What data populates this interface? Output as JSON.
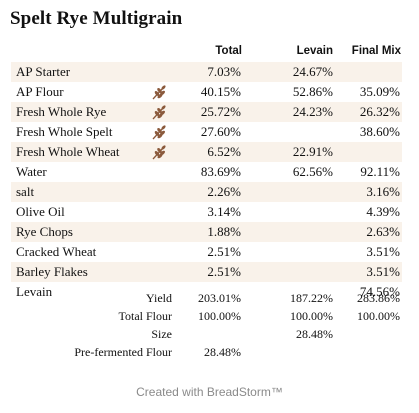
{
  "title": "Spelt Rye Multigrain",
  "columns": {
    "total": "Total",
    "levain": "Levain",
    "final": "Final Mix"
  },
  "rows": [
    {
      "name": "AP Starter",
      "total": "7.03%",
      "levain": "24.67%",
      "final": "",
      "icon": ""
    },
    {
      "name": "AP Flour",
      "total": "40.15%",
      "levain": "52.86%",
      "final": "35.09%",
      "icon": "wheat-icon"
    },
    {
      "name": "Fresh Whole Rye",
      "total": "25.72%",
      "levain": "24.23%",
      "final": "26.32%",
      "icon": "wheat-icon"
    },
    {
      "name": "Fresh Whole Spelt",
      "total": "27.60%",
      "levain": "",
      "final": "38.60%",
      "icon": "wheat-icon"
    },
    {
      "name": "Fresh Whole Wheat",
      "total": "6.52%",
      "levain": "22.91%",
      "final": "",
      "icon": "wheat-icon"
    },
    {
      "name": "Water",
      "total": "83.69%",
      "levain": "62.56%",
      "final": "92.11%",
      "icon": ""
    },
    {
      "name": "salt",
      "total": "2.26%",
      "levain": "",
      "final": "3.16%",
      "icon": ""
    },
    {
      "name": "Olive Oil",
      "total": "3.14%",
      "levain": "",
      "final": "4.39%",
      "icon": ""
    },
    {
      "name": "Rye Chops",
      "total": "1.88%",
      "levain": "",
      "final": "2.63%",
      "icon": ""
    },
    {
      "name": "Cracked Wheat",
      "total": "2.51%",
      "levain": "",
      "final": "3.51%",
      "icon": ""
    },
    {
      "name": "Barley Flakes",
      "total": "2.51%",
      "levain": "",
      "final": "3.51%",
      "icon": ""
    },
    {
      "name": "Levain",
      "total": "",
      "levain": "",
      "final": "74.56%",
      "icon": ""
    }
  ],
  "summary": [
    {
      "label": "Yield",
      "total": "203.01%",
      "levain": "187.22%",
      "final": "283.86%"
    },
    {
      "label": "Total Flour",
      "total": "100.00%",
      "levain": "100.00%",
      "final": "100.00%"
    },
    {
      "label": "Size",
      "total": "",
      "levain": "28.48%",
      "final": ""
    },
    {
      "label": "Pre-fermented Flour",
      "total": "28.48%",
      "levain": "",
      "final": ""
    }
  ],
  "footer": "Created with BreadStorm™",
  "colors": {
    "row_shade": "#f9f2ea",
    "icon": "#8b5a3c",
    "footer_text": "#8a8a8a"
  }
}
